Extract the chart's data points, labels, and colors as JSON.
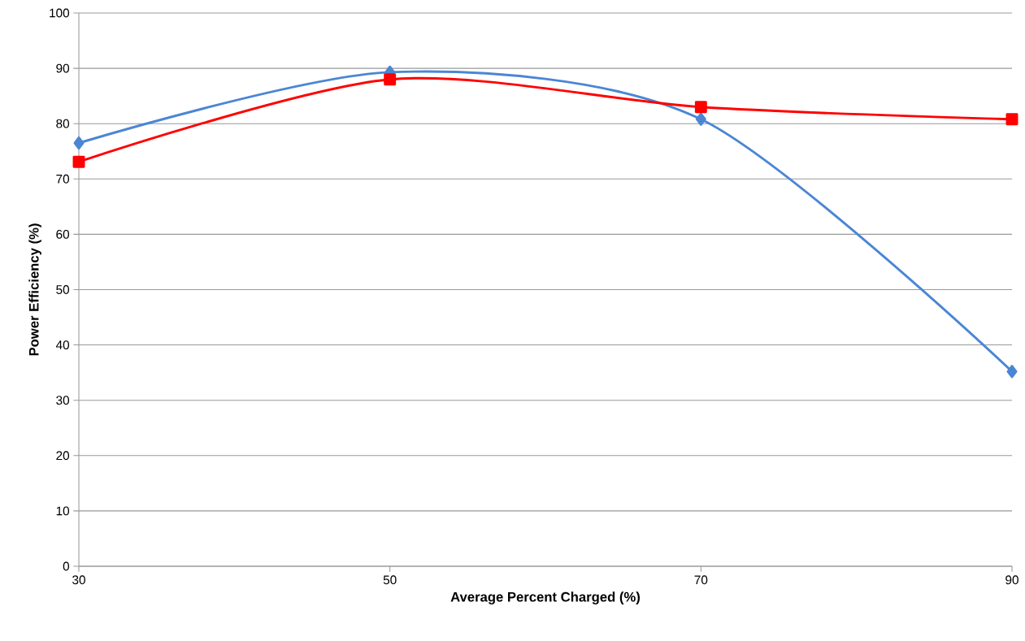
{
  "chart_data": {
    "type": "line",
    "xlabel": "Average Percent Charged (%)",
    "ylabel": "Power Efficiency (%)",
    "x": [
      30,
      50,
      70,
      90
    ],
    "series": [
      {
        "color": "#4a86d4",
        "values": [
          76.5,
          89.3,
          80.8,
          35.2
        ],
        "marker": "diamond"
      },
      {
        "color": "#ff0000",
        "values": [
          73.1,
          88.0,
          83.0,
          80.8
        ],
        "marker": "square"
      }
    ],
    "xlim": [
      30,
      90
    ],
    "xticks": [
      30,
      50,
      70,
      90
    ],
    "ylim": [
      0,
      100
    ],
    "yticks": [
      0,
      10,
      20,
      30,
      40,
      50,
      60,
      70,
      80,
      90,
      100
    ],
    "grid": "y",
    "line_style": "solid"
  }
}
